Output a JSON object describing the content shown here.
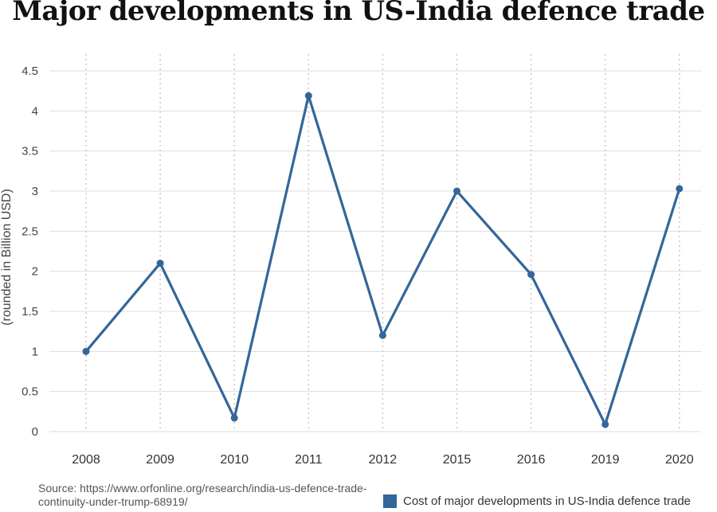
{
  "chart_data": {
    "type": "line",
    "title": "Major developments in US-India defence trade",
    "xlabel": "",
    "ylabel": "(rounded in Billion USD)",
    "categories": [
      "2008",
      "2009",
      "2010",
      "2011",
      "2012",
      "2015",
      "2016",
      "2019",
      "2020"
    ],
    "series": [
      {
        "name": "Cost of major developments in US-India defence trade",
        "values": [
          1.0,
          2.1,
          0.17,
          4.19,
          1.2,
          3.0,
          1.96,
          0.09,
          3.03
        ],
        "color": "#336699"
      }
    ],
    "yticks": [
      "0",
      "0.5",
      "1",
      "1.5",
      "2",
      "2.5",
      "3",
      "3.5",
      "4",
      "4.5"
    ],
    "ylim": [
      0,
      4.5
    ],
    "grid": true,
    "legend": "bottom-right",
    "source": "Source: https://www.orfonline.org/research/india-us-defence-trade-continuity-under-trump-68919/"
  }
}
